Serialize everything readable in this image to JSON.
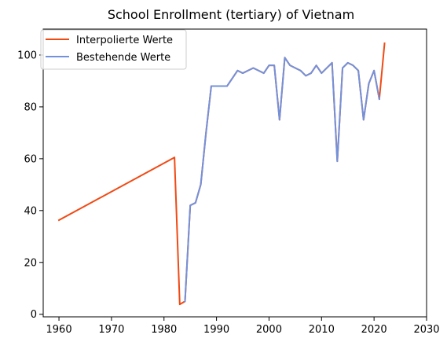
{
  "chart_data": {
    "type": "line",
    "title": "School Enrollment (tertiary) of Vietnam",
    "xlabel": "",
    "ylabel": "",
    "xlim": [
      1957,
      2030
    ],
    "ylim": [
      -1,
      110
    ],
    "xticks": [
      1960,
      1970,
      1980,
      1990,
      2000,
      2010,
      2020,
      2030
    ],
    "yticks": [
      0,
      20,
      40,
      60,
      80,
      100
    ],
    "grid": false,
    "legend_position": "top-left",
    "series": [
      {
        "name": "Interpolierte Werte",
        "color": "#f04a14",
        "x": [
          1960,
          1982,
          1983,
          1984,
          1985,
          1986,
          1987,
          1988,
          1989,
          1990,
          1991,
          1992,
          1993,
          1994,
          1995,
          1996,
          1997,
          1998,
          1999,
          2000,
          2001,
          2002,
          2003,
          2004,
          2005,
          2006,
          2007,
          2008,
          2009,
          2010,
          2011,
          2012,
          2013,
          2014,
          2015,
          2016,
          2017,
          2018,
          2019,
          2020,
          2021,
          2022
        ],
        "y": [
          36.3,
          60.5,
          3.8,
          5,
          42,
          43,
          50,
          70,
          88,
          88,
          88,
          88,
          91,
          94,
          93,
          94,
          95,
          94,
          93,
          96,
          96,
          75,
          99,
          96,
          95,
          94,
          92,
          93,
          96,
          93,
          95,
          97,
          59,
          95,
          97,
          96,
          94,
          75,
          89,
          94,
          83,
          104.5
        ]
      },
      {
        "name": "Bestehende Werte",
        "color": "#7292dc",
        "x": [
          1984,
          1985,
          1986,
          1987,
          1988,
          1989,
          1990,
          1991,
          1992,
          1993,
          1994,
          1995,
          1996,
          1997,
          1998,
          1999,
          2000,
          2001,
          2002,
          2003,
          2004,
          2005,
          2006,
          2007,
          2008,
          2009,
          2010,
          2011,
          2012,
          2013,
          2014,
          2015,
          2016,
          2017,
          2018,
          2019,
          2020,
          2021
        ],
        "y": [
          5,
          42,
          43,
          50,
          70,
          88,
          88,
          88,
          88,
          91,
          94,
          93,
          94,
          95,
          94,
          93,
          96,
          96,
          75,
          99,
          96,
          95,
          94,
          92,
          93,
          96,
          93,
          95,
          97,
          59,
          95,
          97,
          96,
          94,
          75,
          89,
          94,
          83
        ]
      }
    ]
  }
}
